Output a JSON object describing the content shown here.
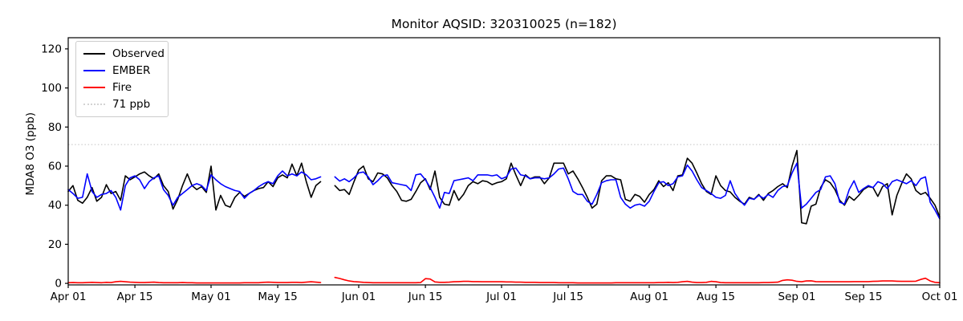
{
  "chart_data": {
    "type": "line",
    "title": "Monitor AQSID: 320310025 (n=182)",
    "xlabel": "",
    "ylabel": "MDA8 O3 (ppb)",
    "grid": false,
    "x_unit": "day index from Apr 01",
    "x_axis": {
      "range_days": [
        0,
        183
      ],
      "tick_days": [
        0,
        14,
        30,
        44,
        61,
        75,
        91,
        105,
        122,
        136,
        153,
        167,
        183
      ],
      "tick_labels": [
        "Apr 01",
        "Apr 15",
        "May 01",
        "May 15",
        "Jun 01",
        "Jun 15",
        "Jul 01",
        "Jul 15",
        "Aug 01",
        "Aug 15",
        "Sep 01",
        "Sep 15",
        "Oct 01"
      ]
    },
    "y_axis": {
      "ticks": [
        0,
        20,
        40,
        60,
        80,
        100,
        120
      ],
      "lim": [
        -0.8,
        125.7
      ]
    },
    "reference_line": {
      "value": 71,
      "label": "71 ppb",
      "color": "#d3d3d3",
      "linestyle": "dotted"
    },
    "legend": {
      "position": "upper-left",
      "entries": [
        {
          "label": "Observed",
          "color": "#000000",
          "style": "solid"
        },
        {
          "label": "EMBER",
          "color": "#0000ff",
          "style": "solid"
        },
        {
          "label": "Fire",
          "color": "#ff0000",
          "style": "solid"
        },
        {
          "label": "71 ppb",
          "color": "#d3d3d3",
          "style": "dotted"
        }
      ]
    },
    "series": [
      {
        "name": "Observed",
        "color": "#000000",
        "values": [
          47,
          50,
          42.5,
          41,
          44,
          49,
          42,
          44,
          50.5,
          46,
          47,
          42.5,
          55,
          53,
          54.5,
          56,
          57,
          55,
          53.5,
          56,
          50,
          47,
          38,
          43,
          50,
          56,
          50,
          48,
          49.5,
          46.5,
          60,
          37.5,
          45,
          40,
          39,
          44,
          46.5,
          44.5,
          46,
          47.5,
          48.5,
          49,
          52,
          49.5,
          54,
          55.5,
          54,
          61,
          55,
          61.5,
          52,
          44,
          50,
          52,
          null,
          null,
          50,
          47.5,
          48,
          45.5,
          52,
          58,
          60,
          53.5,
          52,
          56.5,
          56,
          54,
          50,
          47,
          42.5,
          42,
          43,
          47,
          51.5,
          53.5,
          48,
          57.5,
          44,
          40.5,
          40,
          47.5,
          42.5,
          45.5,
          50,
          52,
          51,
          52.5,
          52,
          50.5,
          51.5,
          52,
          53.5,
          61.5,
          55.5,
          50,
          55.5,
          53.5,
          54.5,
          54.5,
          51,
          54,
          61.5,
          61.5,
          61.5,
          56,
          57.5,
          53.5,
          49,
          44,
          38.5,
          40.5,
          52.5,
          55,
          55,
          53.5,
          53,
          43,
          42,
          45.5,
          44.5,
          41.5,
          45.5,
          48,
          52.5,
          49.5,
          51.5,
          47.5,
          55,
          55.5,
          64,
          61.5,
          56.5,
          51,
          47,
          45.5,
          55,
          50,
          47.5,
          46.8,
          44,
          42,
          40.5,
          44,
          43,
          45.5,
          42.5,
          46,
          47.5,
          49.5,
          51,
          49,
          60,
          68,
          31,
          30.5,
          39.5,
          40.5,
          49,
          53,
          51.5,
          48,
          42.5,
          40,
          44.5,
          42.5,
          45,
          48,
          49.5,
          49,
          44.5,
          49.5,
          51,
          35,
          45,
          51,
          56,
          53.5,
          47.5,
          45.5,
          46.5,
          43.5,
          40,
          34
        ]
      },
      {
        "name": "EMBER",
        "color": "#0000ff",
        "values": [
          48,
          46,
          43.5,
          44,
          56,
          47,
          44,
          45.5,
          46,
          47.5,
          44,
          37.5,
          50,
          54,
          55,
          53,
          48.5,
          52,
          54,
          55,
          48,
          45,
          40,
          44,
          46,
          48,
          50,
          51,
          50,
          47.5,
          55.5,
          53,
          51,
          49.5,
          48.5,
          47.5,
          47,
          43.5,
          46,
          47.5,
          49.5,
          51,
          52,
          51,
          55,
          57.5,
          55,
          56,
          55,
          57,
          55.5,
          53,
          53.5,
          54.5,
          null,
          null,
          54.5,
          52.3,
          53.5,
          52,
          54,
          56.5,
          57,
          54.5,
          50.5,
          52.5,
          55,
          55.5,
          51.5,
          51,
          50.5,
          50,
          47.5,
          55.5,
          56,
          53,
          49,
          44,
          38.5,
          46.5,
          46,
          52.5,
          53,
          53.5,
          54,
          52.5,
          55.5,
          55.5,
          55.5,
          55,
          55.5,
          53.5,
          54.5,
          58.5,
          59,
          55.5,
          55,
          53.5,
          54,
          54,
          53.5,
          54,
          56,
          58.5,
          59,
          53.5,
          47,
          45.5,
          45.5,
          42,
          40.5,
          45.5,
          51.5,
          52.5,
          53,
          53,
          44,
          40.5,
          38.5,
          40,
          40.5,
          39.5,
          42,
          47,
          51.5,
          52,
          50,
          51,
          54.5,
          55,
          60.5,
          57.5,
          53,
          49,
          47.5,
          46,
          44,
          43.5,
          45,
          52.5,
          46,
          42.5,
          40,
          43.5,
          43,
          45,
          43.5,
          45.5,
          44,
          47.5,
          49.5,
          50,
          56.5,
          61.5,
          38.5,
          40.5,
          43.5,
          46.5,
          48,
          54.5,
          55,
          51,
          41.5,
          40.5,
          48,
          52.5,
          46.5,
          48.5,
          50,
          49,
          52,
          51,
          48.5,
          52,
          53,
          52,
          51,
          52.5,
          50,
          53.5,
          54.5,
          41.5,
          37.5,
          33
        ]
      },
      {
        "name": "Fire",
        "color": "#ff0000",
        "values": [
          0.3,
          0.4,
          0.3,
          0.3,
          0.4,
          0.5,
          0.4,
          0.3,
          0.5,
          0.4,
          0.8,
          1.0,
          0.8,
          0.6,
          0.5,
          0.4,
          0.4,
          0.5,
          0.6,
          0.4,
          0.3,
          0.3,
          0.3,
          0.3,
          0.4,
          0.3,
          0.3,
          0.2,
          0.2,
          0.2,
          0.2,
          0.2,
          0.2,
          0.2,
          0.2,
          0.2,
          0.2,
          0.3,
          0.3,
          0.3,
          0.3,
          0.5,
          0.6,
          0.5,
          0.4,
          0.4,
          0.4,
          0.5,
          0.5,
          0.4,
          0.6,
          0.8,
          0.6,
          0.4,
          null,
          null,
          3.0,
          2.5,
          1.8,
          1.2,
          0.9,
          0.7,
          0.5,
          0.4,
          0.3,
          0.3,
          0.3,
          0.3,
          0.3,
          0.3,
          0.3,
          0.3,
          0.3,
          0.3,
          0.4,
          2.4,
          2.2,
          0.7,
          0.5,
          0.5,
          0.6,
          0.8,
          0.9,
          1.0,
          1.0,
          0.9,
          0.9,
          0.8,
          0.8,
          0.8,
          0.8,
          0.8,
          0.7,
          0.7,
          0.6,
          0.6,
          0.5,
          0.5,
          0.5,
          0.4,
          0.4,
          0.4,
          0.4,
          0.3,
          0.3,
          0.3,
          0.3,
          0.2,
          0.2,
          0.2,
          0.2,
          0.2,
          0.2,
          0.2,
          0.2,
          0.3,
          0.3,
          0.3,
          0.3,
          0.3,
          0.3,
          0.3,
          0.3,
          0.3,
          0.4,
          0.4,
          0.5,
          0.4,
          0.5,
          0.8,
          1.0,
          0.6,
          0.4,
          0.4,
          0.5,
          1.0,
          0.8,
          0.4,
          0.3,
          0.3,
          0.3,
          0.3,
          0.3,
          0.3,
          0.3,
          0.3,
          0.4,
          0.4,
          0.5,
          0.6,
          1.5,
          1.8,
          1.6,
          1.0,
          0.8,
          1.2,
          1.3,
          0.9,
          0.8,
          0.8,
          0.8,
          0.8,
          0.8,
          0.8,
          0.8,
          0.9,
          0.9,
          0.9,
          0.9,
          1.0,
          1.1,
          1.2,
          1.2,
          1.2,
          1.1,
          1.0,
          1.0,
          1.0,
          1.1,
          2.0,
          2.6,
          1.2,
          0.5,
          0.3
        ]
      }
    ]
  }
}
